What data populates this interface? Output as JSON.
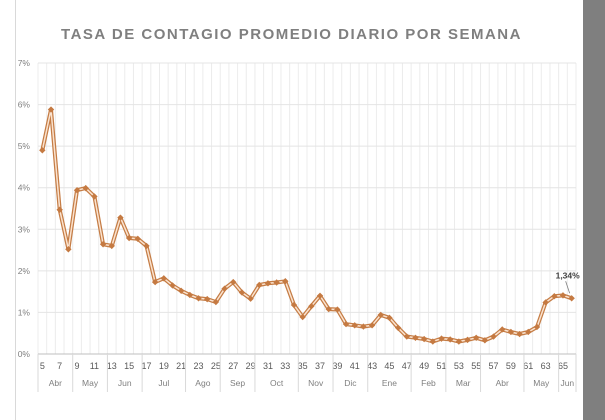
{
  "chart_data": {
    "type": "line",
    "title": "TASA DE CONTAGIO PROMEDIO DIARIO POR SEMANA",
    "xlabel": "",
    "ylabel": "",
    "ylim": [
      0,
      7
    ],
    "yticks": [
      "0%",
      "1%",
      "2%",
      "3%",
      "4%",
      "5%",
      "6%",
      "7%"
    ],
    "grid": true,
    "line_color": "#c57d46",
    "x": [
      5,
      6,
      7,
      8,
      9,
      10,
      11,
      12,
      13,
      14,
      15,
      16,
      17,
      18,
      19,
      20,
      21,
      22,
      23,
      24,
      25,
      26,
      27,
      28,
      29,
      30,
      31,
      32,
      33,
      34,
      35,
      36,
      37,
      38,
      39,
      40,
      41,
      42,
      43,
      44,
      45,
      46,
      47,
      48,
      49,
      50,
      51,
      52,
      53,
      54,
      55,
      56,
      57,
      58,
      59,
      60,
      61,
      62,
      63,
      64,
      65,
      66
    ],
    "values": [
      4.9,
      5.88,
      3.47,
      2.52,
      3.94,
      3.99,
      3.79,
      2.64,
      2.6,
      3.28,
      2.79,
      2.77,
      2.6,
      1.73,
      1.82,
      1.65,
      1.52,
      1.42,
      1.34,
      1.32,
      1.25,
      1.57,
      1.73,
      1.48,
      1.33,
      1.66,
      1.7,
      1.72,
      1.75,
      1.18,
      0.89,
      1.15,
      1.4,
      1.08,
      1.07,
      0.72,
      0.69,
      0.66,
      0.69,
      0.94,
      0.87,
      0.63,
      0.42,
      0.39,
      0.36,
      0.3,
      0.37,
      0.35,
      0.3,
      0.34,
      0.39,
      0.33,
      0.42,
      0.59,
      0.53,
      0.48,
      0.53,
      0.65,
      1.24,
      1.39,
      1.41,
      1.34
    ],
    "months": [
      {
        "label": "Abr",
        "count": 4
      },
      {
        "label": "May",
        "count": 4
      },
      {
        "label": "Jun",
        "count": 4
      },
      {
        "label": "Jul",
        "count": 5
      },
      {
        "label": "Ago",
        "count": 4
      },
      {
        "label": "Sep",
        "count": 4
      },
      {
        "label": "Oct",
        "count": 5
      },
      {
        "label": "Nov",
        "count": 4
      },
      {
        "label": "Dic",
        "count": 4
      },
      {
        "label": "Ene",
        "count": 5
      },
      {
        "label": "Feb",
        "count": 4
      },
      {
        "label": "Mar",
        "count": 4
      },
      {
        "label": "Abr",
        "count": 5
      },
      {
        "label": "May",
        "count": 4
      },
      {
        "label": "Jun",
        "count": 2
      }
    ],
    "annotation": {
      "week": 66,
      "label": "1,34%"
    }
  }
}
